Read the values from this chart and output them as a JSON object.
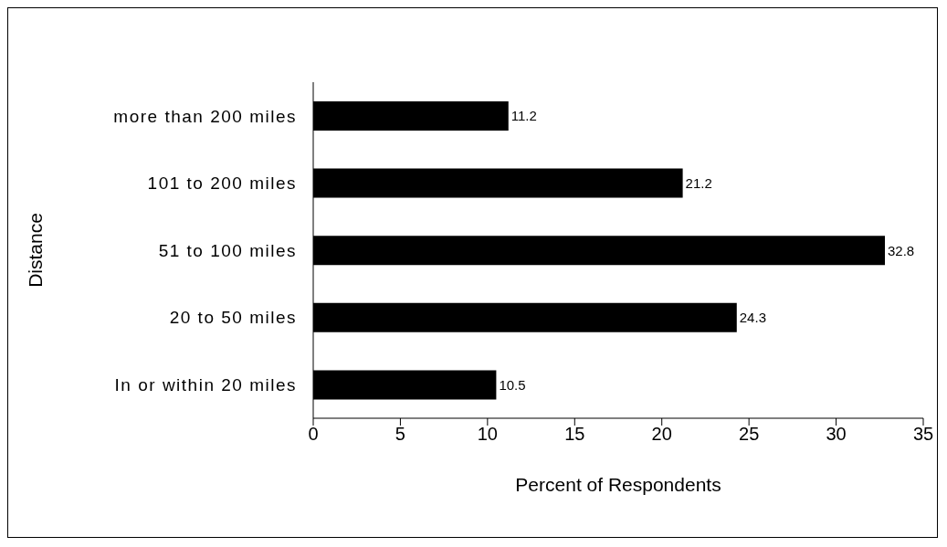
{
  "chart_data": {
    "type": "bar",
    "orientation": "horizontal",
    "categories": [
      "more than 200 miles",
      "101 to 200 miles",
      "51 to 100 miles",
      "20 to 50 miles",
      "In or within 20 miles"
    ],
    "values": [
      11.2,
      21.2,
      32.8,
      24.3,
      10.5
    ],
    "color": "#000000",
    "xlabel": "Percent of Respondents",
    "ylabel": "Distance",
    "xlim": [
      0,
      35
    ],
    "xticks": [
      0,
      5,
      10,
      15,
      20,
      25,
      30,
      35
    ],
    "grid": false,
    "data_labels": true
  }
}
